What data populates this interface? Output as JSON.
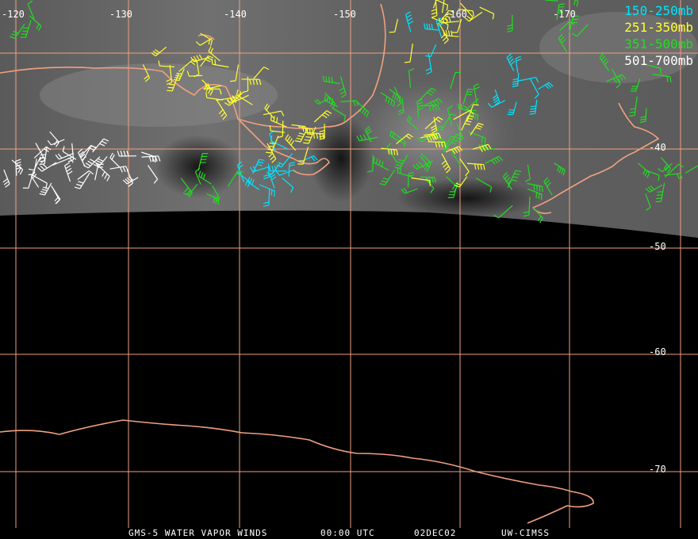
{
  "colors": {
    "background": "#000000",
    "grid": "#f0a080",
    "coast": "#f0a080",
    "level_150_250": "#00e5ff",
    "level_251_350": "#ffff33",
    "level_351_500": "#22dd22",
    "level_501_700": "#ffffff"
  },
  "longitude_labels": [
    "-120",
    "-130",
    "-140",
    "-150",
    "-160",
    "-170"
  ],
  "latitude_labels": [
    "-40",
    "-50",
    "-60",
    "-70"
  ],
  "legend": [
    {
      "text": "150-250mb",
      "color": "#00e5ff"
    },
    {
      "text": "251-350mb",
      "color": "#ffff33"
    },
    {
      "text": "351-500mb",
      "color": "#22dd22"
    },
    {
      "text": "501-700mb",
      "color": "#ffffff"
    }
  ],
  "footer": {
    "satellite": "GMS-5 WATER VAPOR WINDS",
    "time": "00:00 UTC",
    "date": "02DEC02",
    "credit": "UW-CIMSS"
  }
}
